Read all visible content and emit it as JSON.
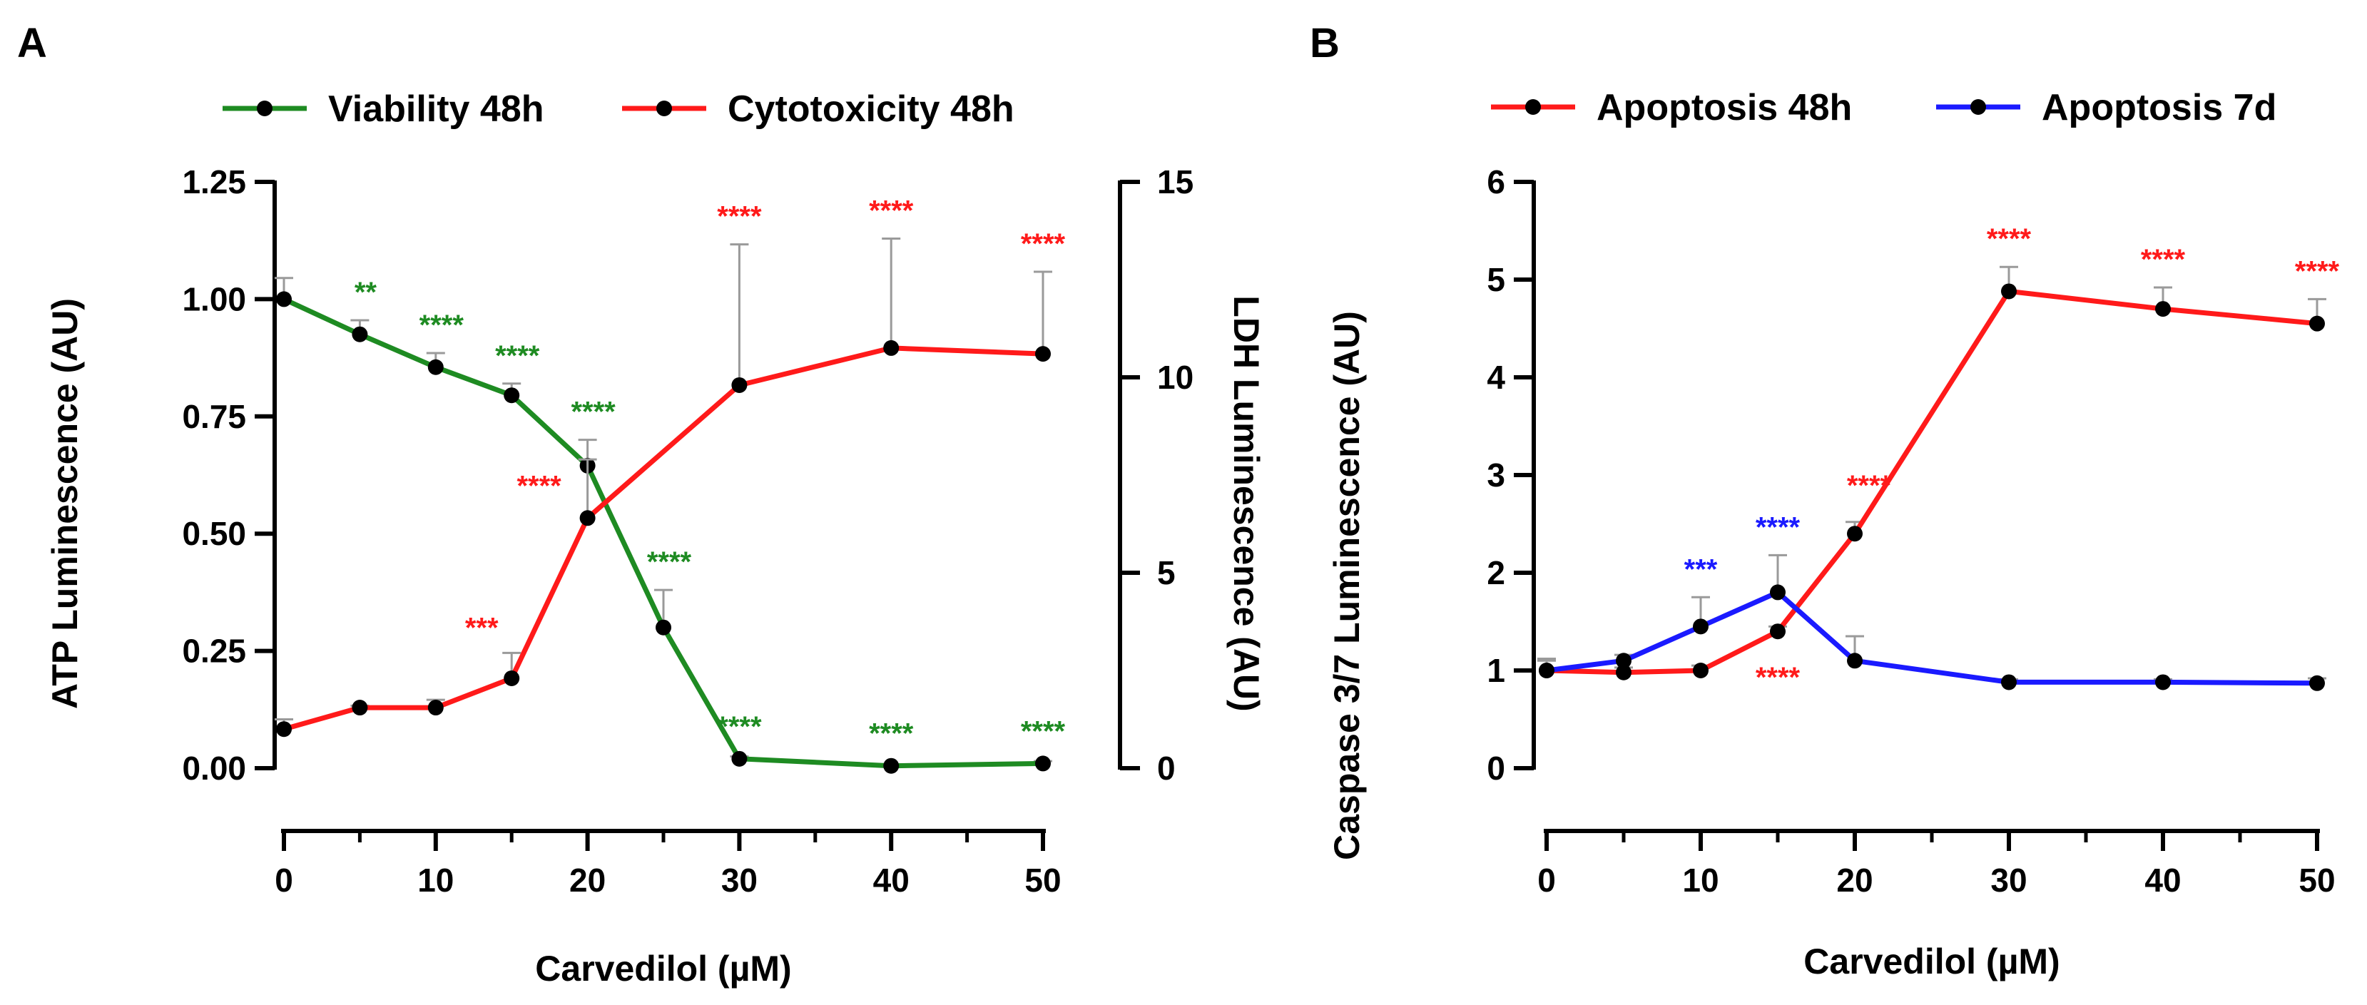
{
  "colors": {
    "green": "#1e8b22",
    "red": "#ff1a1a",
    "blue": "#1a1aff",
    "black": "#000000",
    "error": "#9a9a9a"
  },
  "chart_data": [
    {
      "panel": "A",
      "type": "line",
      "xlabel": "Carvedilol (µM)",
      "ylabel": "ATP Luminescence (AU)",
      "y2label": "LDH Luminescence (AU)",
      "xlim": [
        0,
        50
      ],
      "ylim": [
        0,
        1.25
      ],
      "y2lim": [
        0,
        15
      ],
      "xticks": [
        "0",
        "10",
        "20",
        "30",
        "40",
        "50"
      ],
      "yticks": [
        "0.00",
        "0.25",
        "0.50",
        "0.75",
        "1.00",
        "1.25"
      ],
      "y2ticks": [
        "0",
        "5",
        "10",
        "15"
      ],
      "legend_position": "top",
      "series": [
        {
          "name": "Viability 48h",
          "color": "green",
          "axis": "left",
          "x": [
            0,
            5,
            10,
            15,
            20,
            25,
            30,
            40,
            50
          ],
          "y": [
            1.0,
            0.925,
            0.855,
            0.795,
            0.645,
            0.3,
            0.02,
            0.005,
            0.01
          ],
          "err": [
            0.045,
            0.03,
            0.03,
            0.025,
            0.055,
            0.08,
            0.005,
            0.003,
            0.005
          ],
          "sig": [
            "",
            "**",
            "****",
            "****",
            "****",
            "****",
            "****",
            "****",
            "****"
          ]
        },
        {
          "name": "Cytotoxicity 48h",
          "color": "red",
          "axis": "right",
          "x": [
            0,
            15,
            5,
            10,
            20,
            30,
            40,
            50
          ],
          "y": [
            1.0,
            2.3,
            1.55,
            1.55,
            6.4,
            9.8,
            10.75,
            10.6
          ],
          "err": [
            0.25,
            0.65,
            0.05,
            0.2,
            1.5,
            3.6,
            2.8,
            2.1
          ],
          "sig": [
            "",
            "***",
            "",
            "",
            "****",
            "****",
            "****",
            "****"
          ]
        }
      ]
    },
    {
      "panel": "B",
      "type": "line",
      "xlabel": "Carvedilol (µM)",
      "ylabel": "Caspase 3/7 Luminescence (AU)",
      "xlim": [
        0,
        50
      ],
      "ylim": [
        0,
        6
      ],
      "xticks": [
        "0",
        "10",
        "20",
        "30",
        "40",
        "50"
      ],
      "yticks": [
        "0",
        "1",
        "2",
        "3",
        "4",
        "5",
        "6"
      ],
      "legend_position": "top",
      "series": [
        {
          "name": "Apoptosis 48h",
          "color": "red",
          "x": [
            0,
            5,
            10,
            15,
            20,
            30,
            40,
            50
          ],
          "y": [
            1.0,
            0.98,
            1.0,
            1.4,
            2.4,
            4.88,
            4.7,
            4.55
          ],
          "err": [
            0.1,
            0.05,
            0.05,
            0.05,
            0.12,
            0.25,
            0.22,
            0.25
          ],
          "sig": [
            "",
            "",
            "",
            "****",
            "****",
            "****",
            "****",
            "****"
          ]
        },
        {
          "name": "Apoptosis 7d",
          "color": "blue",
          "x": [
            0,
            5,
            10,
            15,
            20,
            30,
            40,
            50
          ],
          "y": [
            1.0,
            1.1,
            1.45,
            1.8,
            1.1,
            0.88,
            0.88,
            0.87
          ],
          "err": [
            0.12,
            0.06,
            0.3,
            0.38,
            0.25,
            0.03,
            0.03,
            0.05
          ],
          "sig": [
            "",
            "",
            "***",
            "****",
            "",
            "",
            "",
            ""
          ]
        }
      ]
    }
  ]
}
